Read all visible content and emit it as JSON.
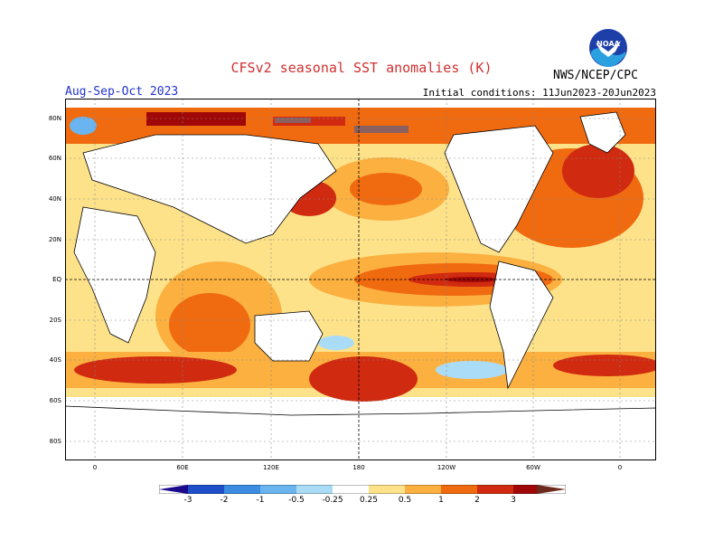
{
  "title": "CFSv2 seasonal SST anomalies (K)",
  "agency": "NWS/NCEP/CPC",
  "logo_text": "NOAA",
  "season": "Aug-Sep-Oct 2023",
  "initial_conditions": "Initial conditions: 11Jun2023-20Jun2023",
  "lat_labels": [
    "80N",
    "60N",
    "40N",
    "20N",
    "EQ",
    "20S",
    "40S",
    "60S",
    "80S"
  ],
  "lon_labels": [
    "0",
    "60E",
    "120E",
    "180",
    "120W",
    "60W",
    "0"
  ],
  "colorbar": {
    "labels": [
      "-3",
      "-2",
      "-1",
      "-0.5",
      "-0.25",
      "0.25",
      "0.5",
      "1",
      "2",
      "3"
    ],
    "colors": [
      "#1a0a8c",
      "#1f4fc8",
      "#3a8de0",
      "#6ab4f0",
      "#aadcf8",
      "#ffffff",
      "#fde28a",
      "#fbb040",
      "#f06a10",
      "#d02a10",
      "#a00808",
      "#6e2a1c",
      "#8a6060"
    ]
  },
  "colors": {
    "title": "#d03030",
    "season": "#2233cc",
    "ocean_warm": "#f06a10",
    "ocean_hot": "#d02a10",
    "ocean_mild": "#fbb040",
    "ocean_light": "#fde28a",
    "ocean_cool": "#6ab4f0",
    "land": "#ffffff"
  }
}
